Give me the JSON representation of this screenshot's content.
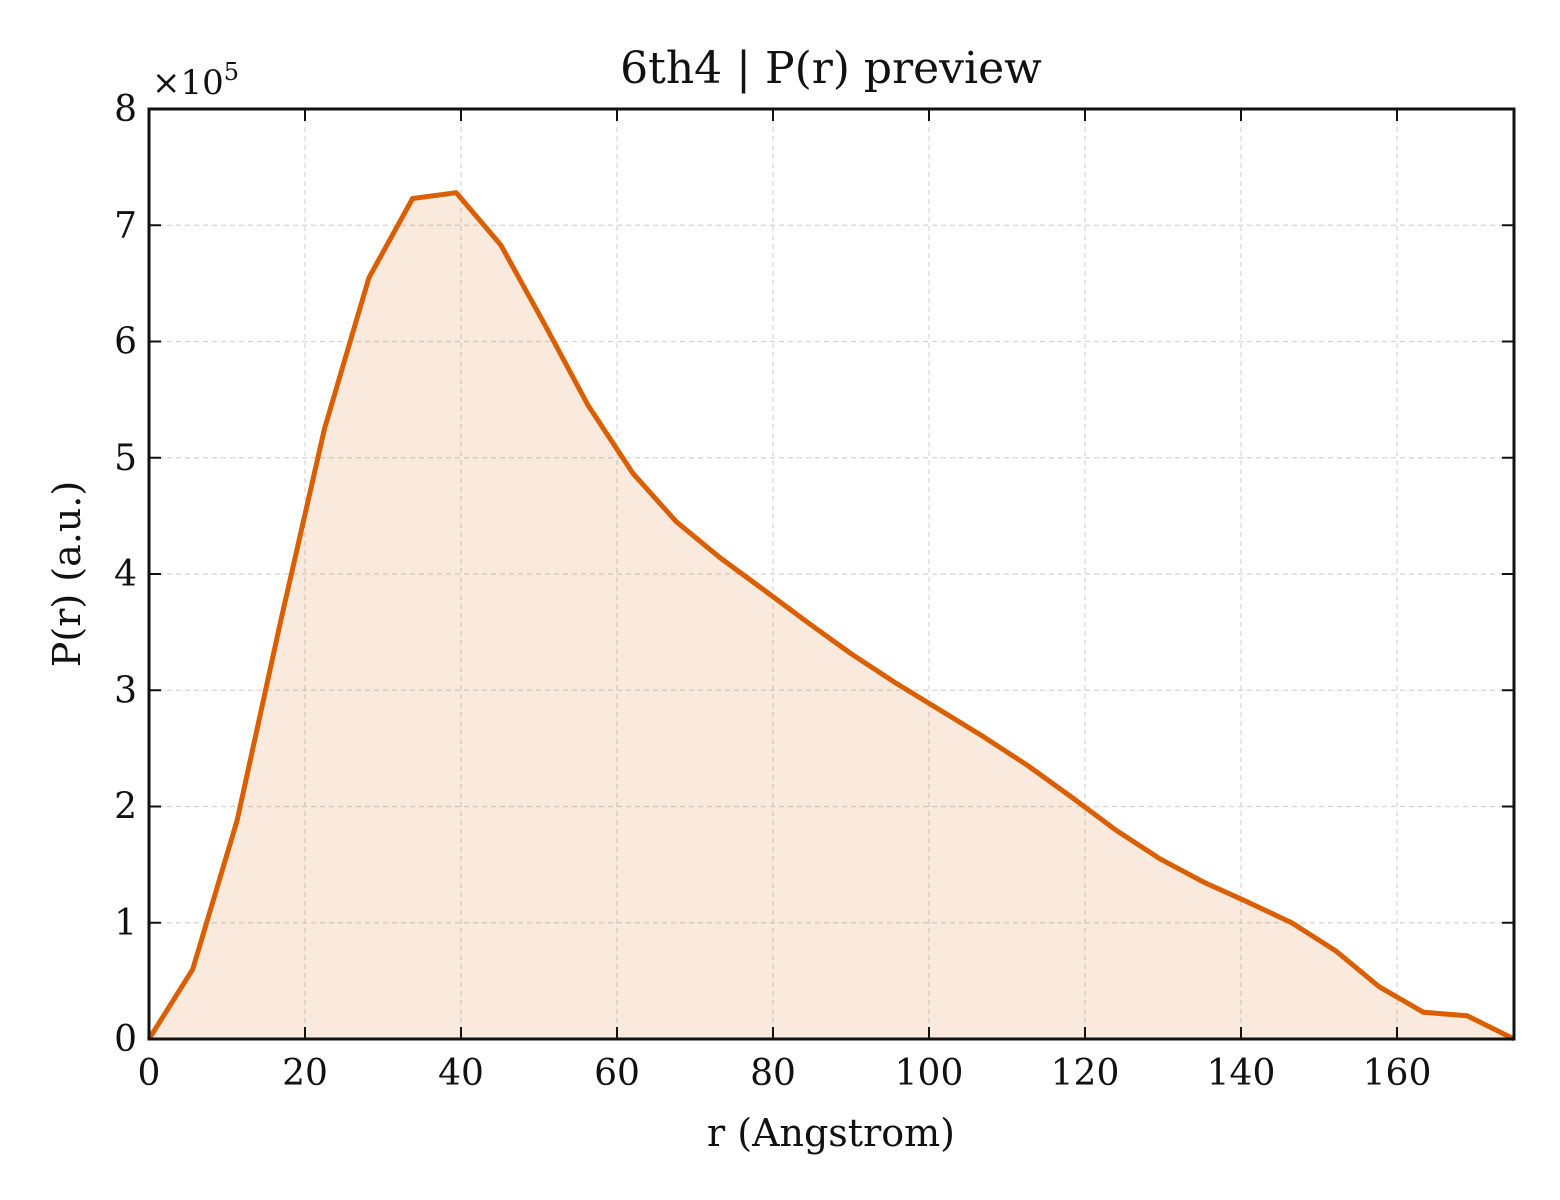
{
  "chart_data": {
    "type": "area",
    "title": "6th4 | P(r) preview",
    "xlabel": "r (Angstrom)",
    "ylabel": "P(r) (a.u.)",
    "y_multiplier": {
      "base": "×10",
      "exponent": "5"
    },
    "xlim": [
      0,
      175
    ],
    "ylim": [
      0,
      8
    ],
    "xticks": [
      0,
      20,
      40,
      60,
      80,
      100,
      120,
      140,
      160
    ],
    "yticks": [
      0,
      1,
      2,
      3,
      4,
      5,
      6,
      7,
      8
    ],
    "grid": true,
    "colors": {
      "line": "#d95f02",
      "fill": "#d95f02",
      "fill_opacity": 0.13
    },
    "series": [
      {
        "x": [
          0,
          5.6,
          11.3,
          16.9,
          22.5,
          28.2,
          33.8,
          39.4,
          45.1,
          50.7,
          56.3,
          62.0,
          67.6,
          73.2,
          78.9,
          84.5,
          90.1,
          95.8,
          101.4,
          107.0,
          112.7,
          118.3,
          123.9,
          129.6,
          135.2,
          140.8,
          146.5,
          152.1,
          157.7,
          163.4,
          169.0,
          175.0
        ],
        "y": [
          0.0,
          0.6,
          1.88,
          3.6,
          5.25,
          6.55,
          7.23,
          7.28,
          6.83,
          6.15,
          5.45,
          4.87,
          4.45,
          4.14,
          3.86,
          3.58,
          3.31,
          3.06,
          2.83,
          2.6,
          2.35,
          2.08,
          1.8,
          1.55,
          1.35,
          1.18,
          1.0,
          0.76,
          0.45,
          0.23,
          0.2,
          0.0
        ]
      }
    ]
  }
}
